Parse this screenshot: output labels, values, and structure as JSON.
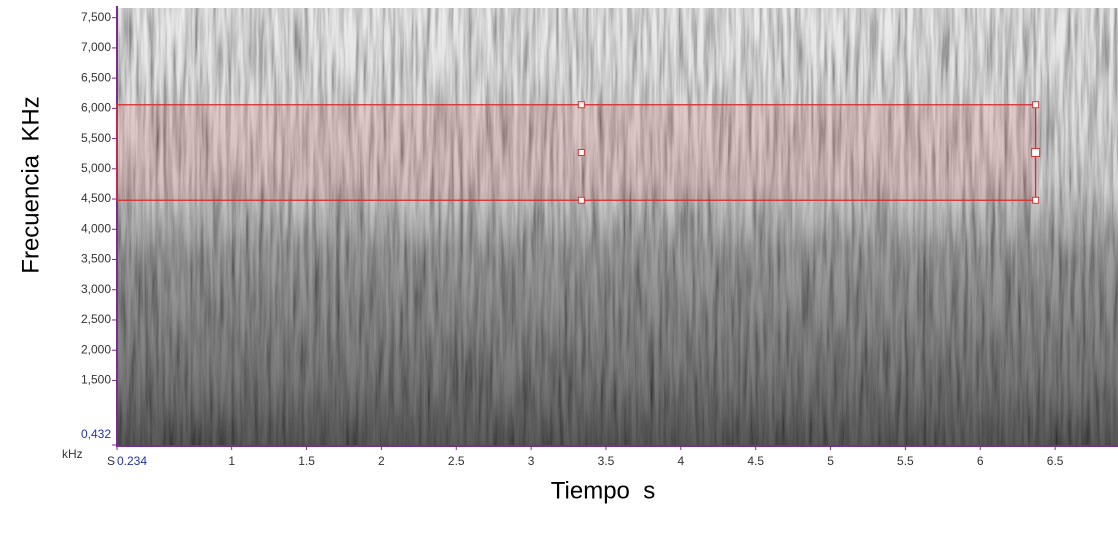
{
  "chart_data": {
    "type": "spectrogram",
    "y_label": "Frecuencia  KHz",
    "x_label": "Tiempo  s",
    "y_unit": "kHz",
    "x_unit": "S",
    "xlim": [
      0.234,
      6.92
    ],
    "xticks": [
      0.234,
      1,
      1.5,
      2,
      2.5,
      3,
      3.5,
      4,
      4.5,
      5,
      5.5,
      6,
      6.5
    ],
    "ylim": [
      432,
      7660
    ],
    "yticks": [
      {
        "value": 432,
        "label": "0,432"
      },
      {
        "value": 1500,
        "label": "1,500"
      },
      {
        "value": 2000,
        "label": "2,000"
      },
      {
        "value": 2500,
        "label": "2,500"
      },
      {
        "value": 3000,
        "label": "3,000"
      },
      {
        "value": 3500,
        "label": "3,500"
      },
      {
        "value": 4000,
        "label": "4,000"
      },
      {
        "value": 4500,
        "label": "4,500"
      },
      {
        "value": 5000,
        "label": "5,000"
      },
      {
        "value": 5500,
        "label": "5,500"
      },
      {
        "value": 6000,
        "label": "6,000"
      },
      {
        "value": 6500,
        "label": "6,500"
      },
      {
        "value": 7000,
        "label": "7,000"
      },
      {
        "value": 7500,
        "label": "7,500"
      }
    ],
    "selection": {
      "x": [
        0.234,
        6.37
      ],
      "y": [
        4480,
        6060
      ],
      "color": "#d93030"
    }
  }
}
